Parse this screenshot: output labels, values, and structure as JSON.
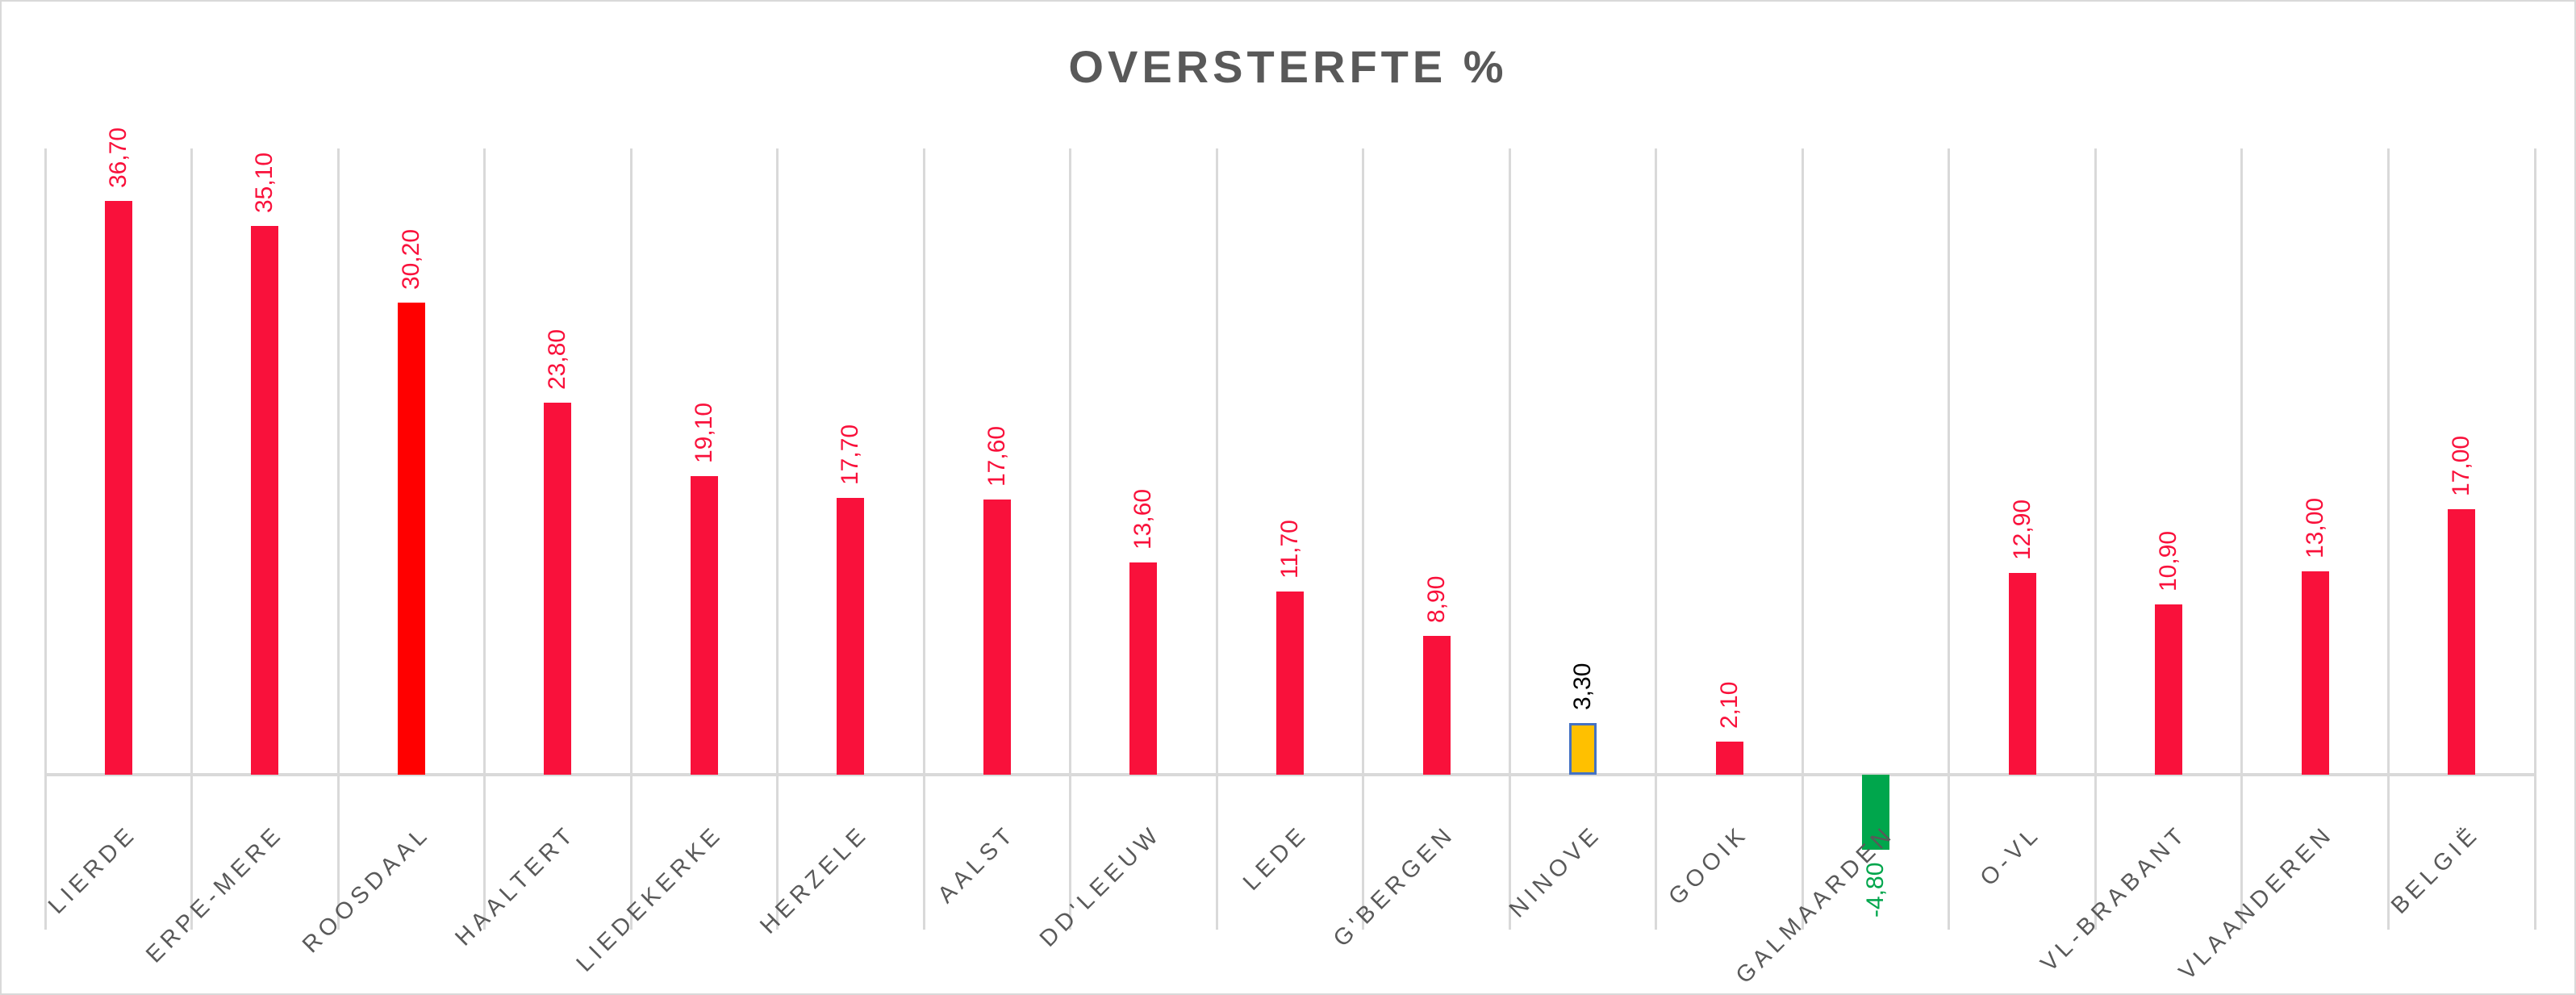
{
  "chart": {
    "title": "OVERSTERFTE %"
  },
  "chart_data": {
    "type": "bar",
    "title": "OVERSTERFTE %",
    "xlabel": "",
    "ylabel": "",
    "categories": [
      "LIERDE",
      "ERPE-MERE",
      "ROOSDAAL",
      "HAALTERT",
      "LIEDEKERKE",
      "HERZELE",
      "AALST",
      "DD'LEEUW",
      "LEDE",
      "G'BERGEN",
      "NINOVE",
      "GOOIK",
      "GALMAARDEN",
      "O-VL",
      "VL-BRABANT",
      "VLAANDEREN",
      "BELGIË"
    ],
    "values": [
      36.7,
      35.1,
      30.2,
      23.8,
      19.1,
      17.7,
      17.6,
      13.6,
      11.7,
      8.9,
      3.3,
      2.1,
      -4.8,
      12.9,
      10.9,
      13.0,
      17.0
    ],
    "value_labels": [
      "36,70",
      "35,10",
      "30,20",
      "23,80",
      "19,10",
      "17,70",
      "17,60",
      "13,60",
      "11,70",
      "8,90",
      "3,30",
      "2,10",
      "-4,80",
      "12,90",
      "10,90",
      "13,00",
      "17,00"
    ],
    "bar_fills": [
      "#F9113B",
      "#F9113B",
      "#FF0000",
      "#F9113B",
      "#F9113B",
      "#F9113B",
      "#F9113B",
      "#F9113B",
      "#F9113B",
      "#F9113B",
      "#FFC000",
      "#F9113B",
      "#00A64C",
      "#F9113B",
      "#F9113B",
      "#F9113B",
      "#F9113B"
    ],
    "bar_borders": [
      null,
      null,
      null,
      null,
      null,
      null,
      null,
      null,
      null,
      null,
      "#4472C4",
      null,
      null,
      null,
      null,
      null,
      null
    ],
    "label_colors": [
      "#F9113B",
      "#F9113B",
      "#F9113B",
      "#F9113B",
      "#F9113B",
      "#F9113B",
      "#F9113B",
      "#F9113B",
      "#F9113B",
      "#F9113B",
      "#000000",
      "#F9113B",
      "#00A64C",
      "#F9113B",
      "#F9113B",
      "#F9113B",
      "#F9113B"
    ],
    "ylim": [
      -10,
      40
    ],
    "baseline_value": 0,
    "grid": "vertical-category-separators",
    "horizontal_gridlines": false,
    "value_axis_labels_visible": false,
    "legend_position": "none",
    "colors": {
      "default_bar": "#F9113B",
      "highlight_red": "#FF0000",
      "highlight_gold": "#FFC000",
      "highlight_gold_border": "#4472C4",
      "highlight_green": "#00A64C",
      "gridline": "#D9D9D9",
      "axis_text": "#595959",
      "title_text": "#595959"
    }
  }
}
